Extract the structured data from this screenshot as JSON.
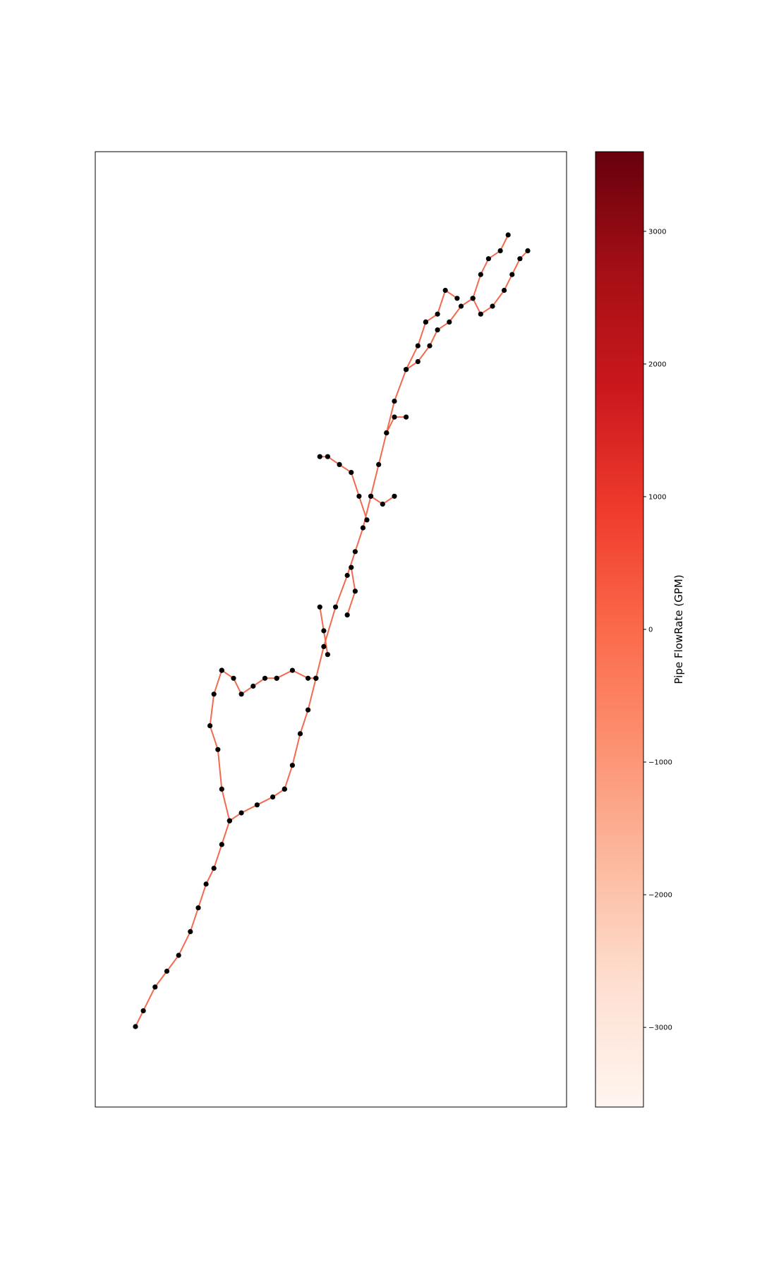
{
  "chart_data": {
    "type": "network",
    "title": "",
    "colorbar": {
      "label": "Pipe FlowRate (GPM)",
      "colormap": "Reds",
      "range": [
        -3600,
        3600
      ],
      "ticks": [
        3000,
        2000,
        1000,
        0,
        -1000,
        -2000,
        -3000
      ],
      "tick_labels": [
        "3000",
        "2000",
        "1000",
        "0",
        "−1000",
        "−2000",
        "−3000"
      ],
      "colors": [
        "#fff5f0",
        "#fee0d2",
        "#fcbba1",
        "#fc9272",
        "#fb6a4a",
        "#ef3b2c",
        "#cb181d",
        "#a50f15",
        "#67000d"
      ]
    },
    "pipe_flow_value": 300,
    "pipe_color": "#f26a4f",
    "node_color": "#000000",
    "frame_visible": true,
    "axis_ticks_shown": false,
    "pipes": [
      [
        [
          0.0,
          0.0
        ],
        [
          0.02,
          0.02
        ],
        [
          0.05,
          0.05
        ],
        [
          0.08,
          0.07
        ],
        [
          0.11,
          0.09
        ],
        [
          0.14,
          0.12
        ],
        [
          0.16,
          0.15
        ],
        [
          0.18,
          0.18
        ],
        [
          0.2,
          0.2
        ],
        [
          0.22,
          0.23
        ],
        [
          0.24,
          0.26
        ]
      ],
      [
        [
          0.24,
          0.26
        ],
        [
          0.22,
          0.3
        ],
        [
          0.21,
          0.35
        ],
        [
          0.19,
          0.38
        ],
        [
          0.2,
          0.42
        ],
        [
          0.22,
          0.45
        ]
      ],
      [
        [
          0.24,
          0.26
        ],
        [
          0.27,
          0.27
        ],
        [
          0.31,
          0.28
        ],
        [
          0.35,
          0.29
        ],
        [
          0.38,
          0.3
        ]
      ],
      [
        [
          0.22,
          0.45
        ],
        [
          0.25,
          0.44
        ],
        [
          0.27,
          0.42
        ],
        [
          0.3,
          0.43
        ],
        [
          0.33,
          0.44
        ],
        [
          0.36,
          0.44
        ]
      ],
      [
        [
          0.38,
          0.3
        ],
        [
          0.4,
          0.33
        ],
        [
          0.42,
          0.37
        ],
        [
          0.44,
          0.4
        ],
        [
          0.46,
          0.44
        ]
      ],
      [
        [
          0.36,
          0.44
        ],
        [
          0.4,
          0.45
        ],
        [
          0.44,
          0.44
        ],
        [
          0.46,
          0.44
        ]
      ],
      [
        [
          0.46,
          0.44
        ],
        [
          0.48,
          0.48
        ],
        [
          0.51,
          0.53
        ],
        [
          0.54,
          0.57
        ],
        [
          0.56,
          0.6
        ],
        [
          0.58,
          0.63
        ],
        [
          0.6,
          0.67
        ],
        [
          0.62,
          0.71
        ],
        [
          0.64,
          0.75
        ],
        [
          0.66,
          0.79
        ],
        [
          0.69,
          0.83
        ],
        [
          0.72,
          0.86
        ],
        [
          0.74,
          0.89
        ]
      ],
      [
        [
          0.49,
          0.47
        ],
        [
          0.48,
          0.5
        ],
        [
          0.47,
          0.53
        ]
      ],
      [
        [
          0.55,
          0.58
        ],
        [
          0.56,
          0.55
        ],
        [
          0.54,
          0.52
        ]
      ],
      [
        [
          0.59,
          0.64
        ],
        [
          0.57,
          0.67
        ],
        [
          0.55,
          0.7
        ],
        [
          0.52,
          0.71
        ],
        [
          0.49,
          0.72
        ],
        [
          0.47,
          0.72
        ]
      ],
      [
        [
          0.6,
          0.67
        ],
        [
          0.63,
          0.66
        ],
        [
          0.66,
          0.67
        ]
      ],
      [
        [
          0.64,
          0.75
        ],
        [
          0.66,
          0.77
        ],
        [
          0.69,
          0.77
        ]
      ],
      [
        [
          0.69,
          0.83
        ],
        [
          0.72,
          0.84
        ],
        [
          0.75,
          0.86
        ],
        [
          0.77,
          0.88
        ],
        [
          0.8,
          0.89
        ],
        [
          0.83,
          0.91
        ],
        [
          0.86,
          0.92
        ],
        [
          0.88,
          0.95
        ],
        [
          0.9,
          0.97
        ],
        [
          0.93,
          0.98
        ],
        [
          0.95,
          1.0
        ]
      ],
      [
        [
          0.74,
          0.89
        ],
        [
          0.77,
          0.9
        ],
        [
          0.79,
          0.93
        ],
        [
          0.82,
          0.92
        ]
      ],
      [
        [
          0.86,
          0.92
        ],
        [
          0.88,
          0.9
        ],
        [
          0.91,
          0.91
        ],
        [
          0.94,
          0.93
        ],
        [
          0.96,
          0.95
        ],
        [
          0.98,
          0.97
        ],
        [
          1.0,
          0.98
        ]
      ]
    ]
  }
}
